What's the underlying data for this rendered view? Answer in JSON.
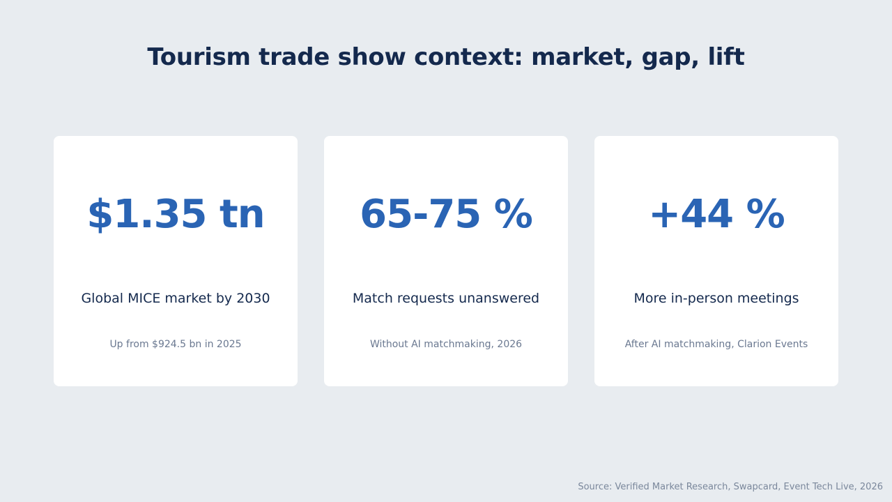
{
  "title": "Tourism trade show context: market, gap, lift",
  "cards": [
    {
      "stat": "$1.35 tn",
      "label": "Global MICE market by 2030",
      "sub": "Up from $924.5 bn in 2025"
    },
    {
      "stat": "65-75 %",
      "label": "Match requests unanswered",
      "sub": "Without AI matchmaking, 2026"
    },
    {
      "stat": "+44 %",
      "label": "More in-person meetings",
      "sub": "After AI matchmaking, Clarion Events"
    }
  ],
  "source": "Source: Verified Market Research, Swapcard, Event Tech Live, 2026",
  "colors": {
    "background": "#e8ecf0",
    "card": "#ffffff",
    "accent": "#2a64b4",
    "heading": "#14294d",
    "muted": "#6a7890"
  }
}
